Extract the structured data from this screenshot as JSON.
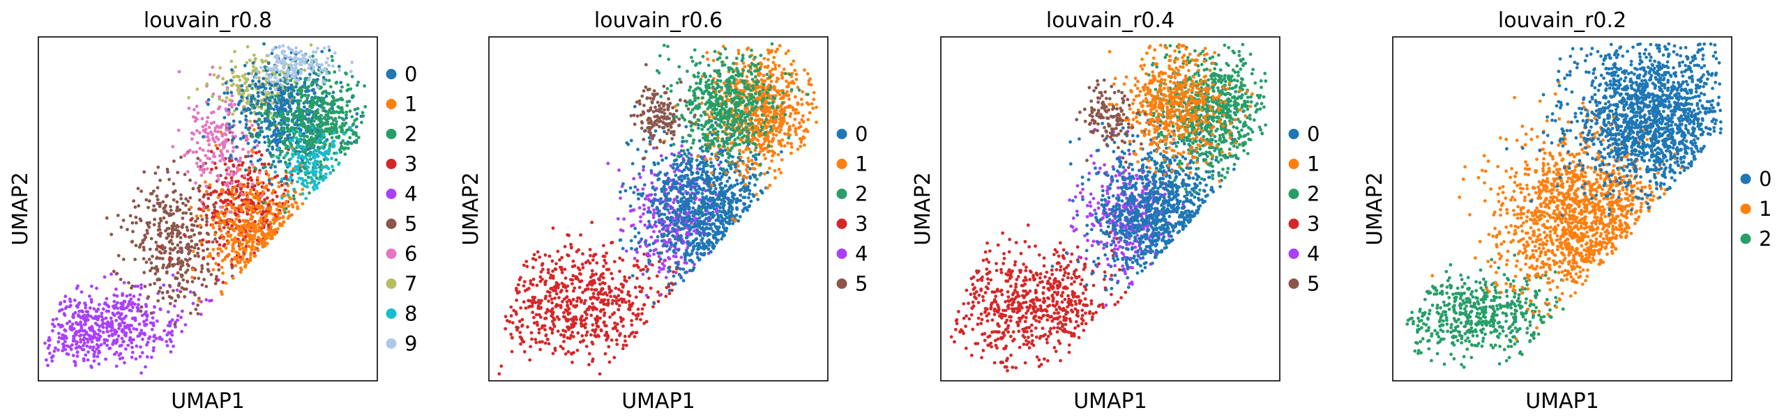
{
  "palette": {
    "0": "#1f77b4",
    "1": "#ff7f0e",
    "2": "#279e68",
    "3": "#d62728",
    "4": "#aa40fc",
    "5": "#8c564b",
    "6": "#e377c2",
    "7": "#b5bd61",
    "8": "#17becf",
    "9": "#aec7e8"
  },
  "chart_data": [
    {
      "type": "scatter",
      "title": "louvain_r0.8",
      "xlabel": "UMAP1",
      "ylabel": "UMAP2",
      "grid": false,
      "ticks": "none",
      "legend_position": "right",
      "legend": [
        "0",
        "1",
        "2",
        "3",
        "4",
        "5",
        "6",
        "7",
        "8",
        "9"
      ],
      "clusters": [
        {
          "name": "4",
          "center": [
            1.8,
            1.2
          ],
          "spread": [
            1.4,
            0.55
          ],
          "n": 520
        },
        {
          "name": "5",
          "center": [
            4.2,
            3.6
          ],
          "spread": [
            0.75,
            1.0
          ],
          "n": 380
        },
        {
          "name": "3",
          "center": [
            6.4,
            4.6
          ],
          "spread": [
            0.7,
            0.9
          ],
          "n": 360
        },
        {
          "name": "1",
          "center": [
            6.9,
            3.7
          ],
          "spread": [
            0.85,
            0.95
          ],
          "n": 420
        },
        {
          "name": "6",
          "center": [
            5.6,
            6.6
          ],
          "spread": [
            0.55,
            0.8
          ],
          "n": 190
        },
        {
          "name": "7",
          "center": [
            6.9,
            8.1
          ],
          "spread": [
            0.65,
            0.45
          ],
          "n": 220
        },
        {
          "name": "0",
          "center": [
            7.6,
            7.4
          ],
          "spread": [
            0.8,
            0.8
          ],
          "n": 520
        },
        {
          "name": "2",
          "center": [
            8.6,
            7.0
          ],
          "spread": [
            0.8,
            0.85
          ],
          "n": 560
        },
        {
          "name": "8",
          "center": [
            8.4,
            5.9
          ],
          "spread": [
            0.5,
            0.5
          ],
          "n": 150
        },
        {
          "name": "9",
          "center": [
            7.9,
            8.8
          ],
          "spread": [
            0.6,
            0.3
          ],
          "n": 150
        }
      ]
    },
    {
      "type": "scatter",
      "title": "louvain_r0.6",
      "xlabel": "UMAP1",
      "ylabel": "UMAP2",
      "grid": false,
      "ticks": "none",
      "legend_position": "right",
      "legend": [
        "0",
        "1",
        "2",
        "3",
        "4",
        "5"
      ],
      "clusters": [
        {
          "name": "3",
          "center": [
            2.8,
            1.8
          ],
          "spread": [
            1.5,
            0.85
          ],
          "n": 620
        },
        {
          "name": "4",
          "center": [
            5.8,
            4.3
          ],
          "spread": [
            0.75,
            0.9
          ],
          "n": 330
        },
        {
          "name": "0",
          "center": [
            6.8,
            4.5
          ],
          "spread": [
            1.0,
            1.1
          ],
          "n": 900
        },
        {
          "name": "1",
          "center": [
            8.4,
            7.4
          ],
          "spread": [
            0.8,
            0.9
          ],
          "n": 720
        },
        {
          "name": "2",
          "center": [
            7.3,
            7.6
          ],
          "spread": [
            0.8,
            0.8
          ],
          "n": 560
        },
        {
          "name": "5",
          "center": [
            5.2,
            7.3
          ],
          "spread": [
            0.4,
            0.45
          ],
          "n": 140
        }
      ]
    },
    {
      "type": "scatter",
      "title": "louvain_r0.4",
      "xlabel": "UMAP1",
      "ylabel": "UMAP2",
      "grid": false,
      "ticks": "none",
      "legend_position": "right",
      "legend": [
        "0",
        "1",
        "2",
        "3",
        "4",
        "5"
      ],
      "clusters": [
        {
          "name": "3",
          "center": [
            2.8,
            1.8
          ],
          "spread": [
            1.5,
            0.85
          ],
          "n": 620
        },
        {
          "name": "4",
          "center": [
            5.8,
            4.3
          ],
          "spread": [
            0.75,
            0.9
          ],
          "n": 330
        },
        {
          "name": "0",
          "center": [
            6.8,
            4.5
          ],
          "spread": [
            1.0,
            1.1
          ],
          "n": 900
        },
        {
          "name": "2",
          "center": [
            8.4,
            7.4
          ],
          "spread": [
            0.8,
            0.9
          ],
          "n": 720
        },
        {
          "name": "1",
          "center": [
            7.3,
            7.6
          ],
          "spread": [
            0.8,
            0.8
          ],
          "n": 560
        },
        {
          "name": "5",
          "center": [
            5.2,
            7.3
          ],
          "spread": [
            0.4,
            0.45
          ],
          "n": 140
        }
      ]
    },
    {
      "type": "scatter",
      "title": "louvain_r0.2",
      "xlabel": "UMAP1",
      "ylabel": "UMAP2",
      "grid": false,
      "ticks": "none",
      "legend_position": "right",
      "legend": [
        "0",
        "1",
        "2"
      ],
      "clusters": [
        {
          "name": "2",
          "center": [
            2.7,
            1.5
          ],
          "spread": [
            1.3,
            0.6
          ],
          "n": 520
        },
        {
          "name": "1",
          "center": [
            5.8,
            4.3
          ],
          "spread": [
            1.3,
            1.2
          ],
          "n": 1300
        },
        {
          "name": "0",
          "center": [
            8.0,
            7.3
          ],
          "spread": [
            1.2,
            1.1
          ],
          "n": 1500
        }
      ]
    }
  ]
}
